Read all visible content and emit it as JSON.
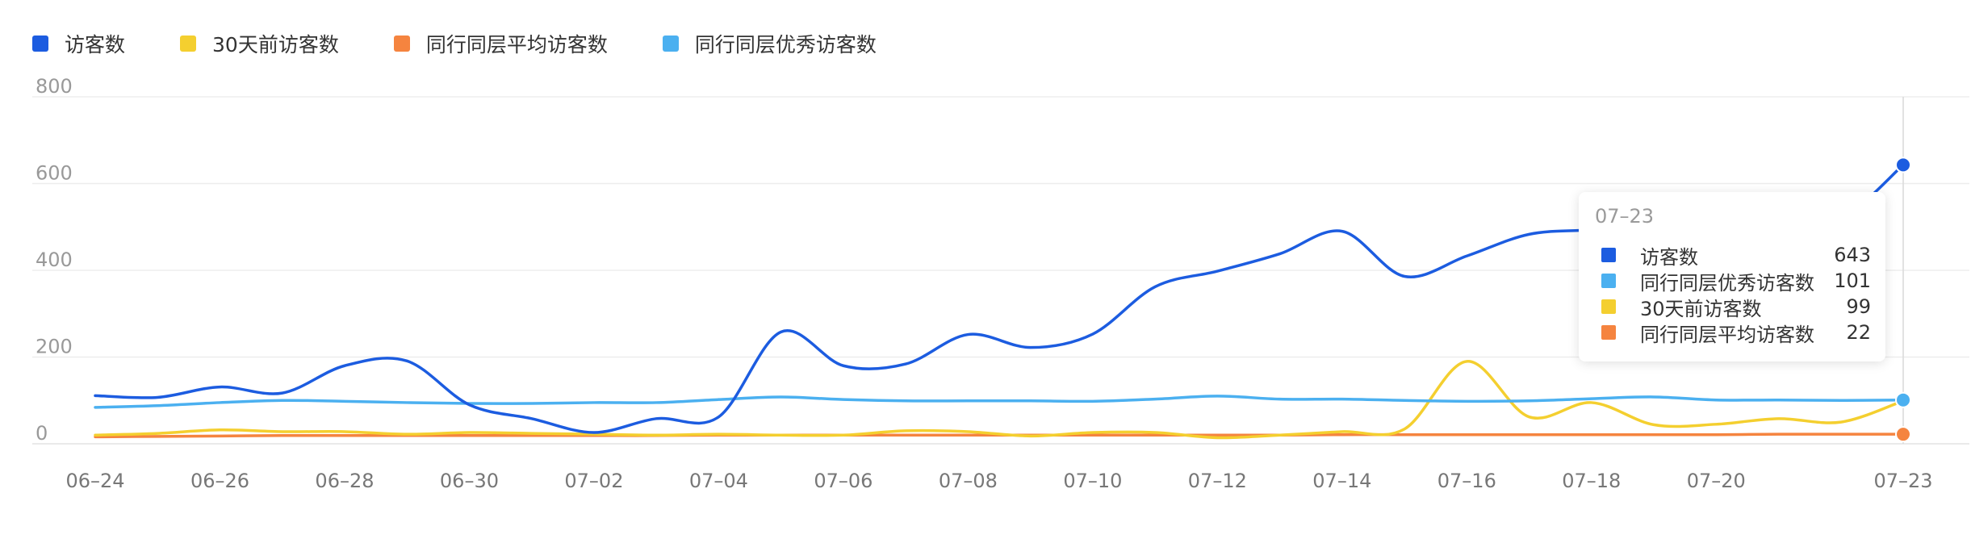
{
  "chart_data": {
    "type": "line",
    "x": [
      "06-24",
      "06-25",
      "06-26",
      "06-27",
      "06-28",
      "06-29",
      "06-30",
      "07-01",
      "07-02",
      "07-03",
      "07-04",
      "07-05",
      "07-06",
      "07-07",
      "07-08",
      "07-09",
      "07-10",
      "07-11",
      "07-12",
      "07-13",
      "07-14",
      "07-15",
      "07-16",
      "07-17",
      "07-18",
      "07-19",
      "07-20",
      "07-21",
      "07-22",
      "07-23"
    ],
    "x_tick_labels": [
      "06–24",
      "06–26",
      "06–28",
      "06–30",
      "07–02",
      "07–04",
      "07–06",
      "07–08",
      "07–10",
      "07–12",
      "07–14",
      "07–16",
      "07–18",
      "07–20",
      "07–23"
    ],
    "x_tick_indices": [
      0,
      2,
      4,
      6,
      8,
      10,
      12,
      14,
      16,
      18,
      20,
      22,
      24,
      26,
      29
    ],
    "y_ticks": [
      0,
      200,
      400,
      600,
      800
    ],
    "ylim": [
      0,
      800
    ],
    "grid": true,
    "legend_position": "top-left",
    "series": [
      {
        "name": "访客数",
        "color": "#1c5ce0",
        "values": [
          111,
          107,
          131,
          117,
          180,
          191,
          90,
          58,
          26,
          58,
          62,
          258,
          180,
          184,
          252,
          222,
          253,
          362,
          398,
          438,
          490,
          386,
          433,
          483,
          493,
          500,
          505,
          515,
          520,
          643
        ]
      },
      {
        "name": "30天前访客数",
        "color": "#f4cf2f",
        "values": [
          20,
          24,
          32,
          28,
          28,
          22,
          26,
          24,
          22,
          20,
          22,
          20,
          20,
          30,
          28,
          18,
          26,
          26,
          14,
          20,
          28,
          34,
          190,
          62,
          95,
          44,
          45,
          58,
          50,
          99
        ]
      },
      {
        "name": "同行同层平均访客数",
        "color": "#f5843f",
        "values": [
          16,
          17,
          18,
          19,
          19,
          19,
          19,
          19,
          19,
          19,
          20,
          20,
          20,
          20,
          20,
          20,
          20,
          20,
          20,
          20,
          21,
          21,
          21,
          21,
          21,
          21,
          21,
          22,
          22,
          22
        ]
      },
      {
        "name": "同行同层优秀访客数",
        "color": "#4bb0f0",
        "values": [
          84,
          88,
          95,
          100,
          98,
          95,
          93,
          93,
          95,
          95,
          102,
          108,
          102,
          99,
          99,
          99,
          98,
          103,
          110,
          103,
          103,
          100,
          98,
          99,
          104,
          108,
          101,
          101,
          100,
          101
        ]
      }
    ],
    "tooltip": {
      "title": "07–23",
      "rows": [
        {
          "name": "访客数",
          "value": "643",
          "color": "#1c5ce0"
        },
        {
          "name": "同行同层优秀访客数",
          "value": "101",
          "color": "#4bb0f0"
        },
        {
          "name": "30天前访客数",
          "value": "99",
          "color": "#f4cf2f"
        },
        {
          "name": "同行同层平均访客数",
          "value": "22",
          "color": "#f5843f"
        }
      ]
    }
  }
}
